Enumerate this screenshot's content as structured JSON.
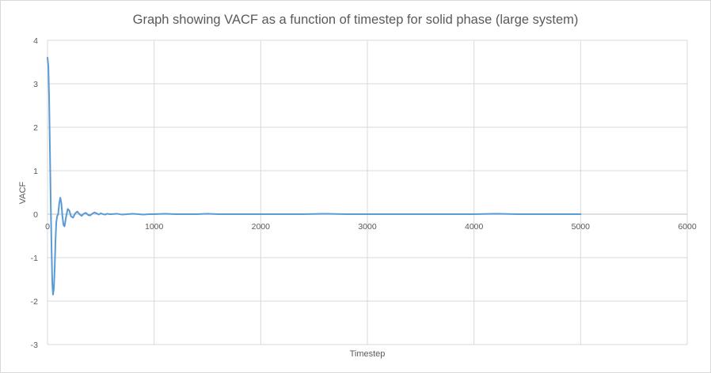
{
  "chart_data": {
    "type": "line",
    "title": "Graph showing VACF as a function of timestep for solid phase (large system)",
    "xlabel": "Timestep",
    "ylabel": "VACF",
    "xlim": [
      0,
      6000
    ],
    "ylim": [
      -3,
      4
    ],
    "x_ticks": [
      "0",
      "1000",
      "2000",
      "3000",
      "4000",
      "5000",
      "6000"
    ],
    "y_ticks": [
      "4",
      "3",
      "2",
      "1",
      "0",
      "-1",
      "-2",
      "-3"
    ],
    "grid": true,
    "legend": "none",
    "line_color": "#5b9bd5",
    "series": [
      {
        "x": [
          0,
          8,
          15,
          22,
          30,
          38,
          45,
          52,
          60,
          68,
          75,
          82,
          90,
          100,
          110,
          120,
          130,
          140,
          150,
          160,
          175,
          190,
          205,
          220,
          240,
          260,
          280,
          300,
          320,
          340,
          360,
          380,
          400,
          420,
          440,
          460,
          480,
          500,
          520,
          540,
          560,
          580,
          600,
          650,
          700,
          750,
          800,
          850,
          900,
          950,
          1000,
          1100,
          1200,
          1300,
          1400,
          1500,
          1600,
          1700,
          1800,
          1900,
          2000,
          2200,
          2400,
          2600,
          2800,
          3000,
          3200,
          3400,
          3600,
          3800,
          4000,
          4200,
          4400,
          4600,
          4800,
          5000
        ],
        "y": [
          3.6,
          3.4,
          2.7,
          1.6,
          0.3,
          -0.8,
          -1.6,
          -1.85,
          -1.7,
          -1.2,
          -0.6,
          -0.2,
          -0.05,
          0.0,
          0.25,
          0.38,
          0.25,
          -0.05,
          -0.25,
          -0.28,
          -0.05,
          0.12,
          0.08,
          -0.05,
          -0.08,
          0.02,
          0.06,
          0.0,
          -0.04,
          0.01,
          0.03,
          -0.02,
          -0.03,
          0.01,
          0.04,
          0.02,
          -0.01,
          0.02,
          0.0,
          -0.01,
          0.01,
          0.0,
          0.0,
          0.01,
          -0.01,
          0.0,
          0.01,
          0.0,
          -0.01,
          0.0,
          0.0,
          0.01,
          0.0,
          0.0,
          0.0,
          0.01,
          0.0,
          0.0,
          0.0,
          0.0,
          0.0,
          0.0,
          0.0,
          0.01,
          0.0,
          0.0,
          0.0,
          0.0,
          0.0,
          0.0,
          0.0,
          0.01,
          0.0,
          0.0,
          0.0,
          0.0
        ]
      }
    ]
  }
}
